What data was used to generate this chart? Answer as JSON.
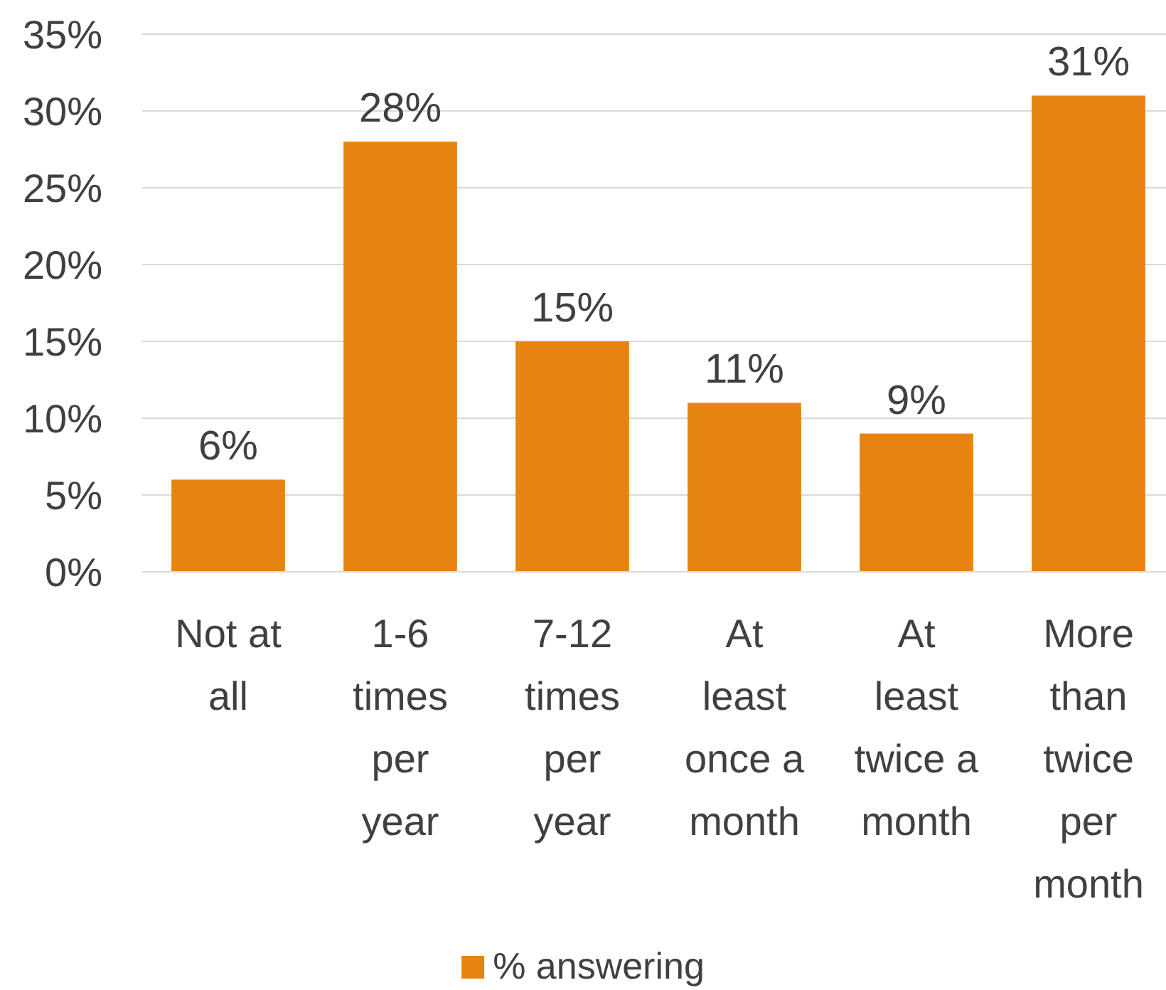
{
  "chart_data": {
    "type": "bar",
    "categories": [
      "Not at all",
      "1-6 times per year",
      "7-12 times per year",
      "At least once a month",
      "At least twice a month",
      "More than twice per month"
    ],
    "series": [
      {
        "name": "% answering",
        "color": "#e58411",
        "values": [
          6,
          28,
          15,
          11,
          9,
          31
        ]
      }
    ],
    "ylim": [
      0,
      35
    ],
    "yticks": [
      {
        "value": 0,
        "label": "0%"
      },
      {
        "value": 5,
        "label": "5%"
      },
      {
        "value": 10,
        "label": "10%"
      },
      {
        "value": 15,
        "label": "15%"
      },
      {
        "value": 20,
        "label": "20%"
      },
      {
        "value": 25,
        "label": "25%"
      },
      {
        "value": 30,
        "label": "30%"
      },
      {
        "value": 35,
        "label": "35%"
      }
    ],
    "grid": "y",
    "legend": "bottom",
    "value_labels": [
      "6%",
      "28%",
      "15%",
      "11%",
      "9%",
      "31%"
    ]
  }
}
